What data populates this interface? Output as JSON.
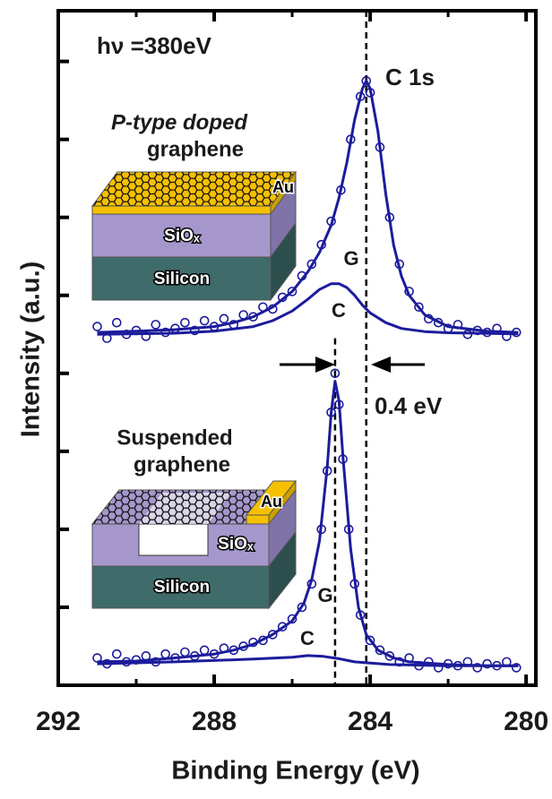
{
  "chart_data": {
    "type": "line",
    "x_label": "Binding Energy (eV)",
    "y_label": "Intensity (a.u.)",
    "xlim": [
      292,
      279.75
    ],
    "xticks": [
      292,
      288,
      284,
      280
    ],
    "xticks_minor": [
      290,
      286,
      282
    ],
    "ylim": [
      0,
      17.3
    ],
    "yticks": [
      2,
      4,
      6,
      8,
      10,
      12,
      14,
      16
    ],
    "vlines": [
      284.1,
      284.9
    ],
    "annotations": [
      "hν =380eV",
      "C 1s",
      "0.4 eV"
    ],
    "insets": [
      {
        "heading": [
          "P-type doped",
          "graphene"
        ],
        "layers": [
          "Au",
          "SiOₓ",
          "Silicon"
        ]
      },
      {
        "heading": [
          "Suspended",
          "graphene"
        ],
        "layers": [
          "Au",
          "SiOₓ",
          "Silicon"
        ]
      }
    ],
    "series": [
      {
        "style": "markers",
        "color": "#1c1c9c",
        "x": [
          291.0,
          290.75,
          290.5,
          290.25,
          290.0,
          289.75,
          289.5,
          289.25,
          289.0,
          288.75,
          288.5,
          288.25,
          288.0,
          287.75,
          287.5,
          287.25,
          287.0,
          286.75,
          286.5,
          286.25,
          286.0,
          285.75,
          285.5,
          285.25,
          285.0,
          284.75,
          284.5,
          284.25,
          284.1,
          284.0,
          283.75,
          283.5,
          283.25,
          283.0,
          282.75,
          282.5,
          282.25,
          282.0,
          281.75,
          281.5,
          281.25,
          281.0,
          280.75,
          280.5,
          280.25
        ],
        "values": [
          9.2,
          8.9,
          9.3,
          9.0,
          9.1,
          8.95,
          9.25,
          9.05,
          9.15,
          9.3,
          9.1,
          9.35,
          9.2,
          9.4,
          9.25,
          9.5,
          9.45,
          9.7,
          9.65,
          9.95,
          10.1,
          10.5,
          10.8,
          11.3,
          11.9,
          12.7,
          14.0,
          15.1,
          15.5,
          15.2,
          13.8,
          12.0,
          10.8,
          10.1,
          9.7,
          9.4,
          9.3,
          9.15,
          9.25,
          9.0,
          9.1,
          9.05,
          9.15,
          8.95,
          9.05
        ]
      },
      {
        "style": "line",
        "color": "#1c1c9c",
        "label": "G",
        "x": [
          291,
          290,
          289,
          288,
          287.5,
          287,
          286.5,
          286,
          285.6,
          285.3,
          285,
          284.8,
          284.6,
          284.4,
          284.2,
          284.1,
          284.0,
          283.8,
          283.6,
          283.4,
          283.2,
          283,
          282.6,
          282,
          281,
          280.2
        ],
        "values": [
          9.05,
          9.08,
          9.12,
          9.2,
          9.3,
          9.45,
          9.7,
          10.1,
          10.6,
          11.1,
          11.8,
          12.5,
          13.4,
          14.5,
          15.3,
          15.5,
          15.3,
          14.2,
          12.6,
          11.3,
          10.5,
          10.0,
          9.5,
          9.2,
          9.08,
          9.05
        ]
      },
      {
        "style": "line",
        "color": "#1c1c9c",
        "label": "C",
        "x": [
          291,
          289,
          288,
          287,
          286.5,
          286,
          285.6,
          285.3,
          285,
          284.8,
          284.6,
          284.4,
          284.2,
          284,
          283.6,
          283.2,
          282.6,
          282,
          280.2
        ],
        "values": [
          9.0,
          9.03,
          9.08,
          9.2,
          9.35,
          9.6,
          9.9,
          10.15,
          10.3,
          10.3,
          10.2,
          10.0,
          9.75,
          9.55,
          9.3,
          9.15,
          9.07,
          9.04,
          9.01
        ]
      },
      {
        "style": "markers",
        "color": "#1c1c9c",
        "x": [
          291.0,
          290.75,
          290.5,
          290.25,
          290.0,
          289.75,
          289.5,
          289.25,
          289.0,
          288.75,
          288.5,
          288.25,
          288.0,
          287.75,
          287.5,
          287.25,
          287.0,
          286.75,
          286.5,
          286.25,
          286.0,
          285.75,
          285.5,
          285.25,
          285.1,
          285.0,
          284.9,
          284.8,
          284.7,
          284.55,
          284.4,
          284.25,
          284.0,
          283.75,
          283.5,
          283.25,
          283.0,
          282.75,
          282.5,
          282.25,
          282.0,
          281.75,
          281.5,
          281.25,
          281.0,
          280.75,
          280.5,
          280.25
        ],
        "values": [
          0.7,
          0.55,
          0.8,
          0.6,
          0.65,
          0.75,
          0.6,
          0.8,
          0.7,
          0.85,
          0.75,
          0.9,
          0.8,
          0.95,
          0.9,
          1.0,
          1.1,
          1.15,
          1.3,
          1.5,
          1.7,
          2.0,
          2.6,
          4.0,
          5.5,
          7.0,
          8.0,
          7.2,
          5.8,
          4.0,
          2.6,
          1.8,
          1.15,
          0.9,
          0.75,
          0.6,
          0.7,
          0.5,
          0.6,
          0.45,
          0.55,
          0.5,
          0.6,
          0.45,
          0.55,
          0.5,
          0.6,
          0.45
        ]
      },
      {
        "style": "line",
        "color": "#1c1c9c",
        "label": "G",
        "x": [
          291,
          290,
          289,
          288,
          287.5,
          287,
          286.5,
          286,
          285.7,
          285.5,
          285.3,
          285.1,
          285.0,
          284.9,
          284.8,
          284.7,
          284.5,
          284.3,
          284.1,
          283.8,
          283.4,
          283,
          282,
          281,
          280.2
        ],
        "values": [
          0.6,
          0.62,
          0.7,
          0.8,
          0.9,
          1.05,
          1.3,
          1.65,
          2.1,
          2.7,
          3.7,
          5.6,
          7.0,
          7.8,
          7.3,
          5.9,
          3.5,
          2.0,
          1.3,
          0.9,
          0.7,
          0.6,
          0.53,
          0.5,
          0.5
        ]
      },
      {
        "style": "line",
        "color": "#1c1c9c",
        "label": "C",
        "x": [
          291,
          289,
          287,
          286,
          285.6,
          285.2,
          284.8,
          284.4,
          283.5,
          282,
          280.2
        ],
        "values": [
          0.55,
          0.6,
          0.67,
          0.72,
          0.76,
          0.74,
          0.68,
          0.6,
          0.53,
          0.5,
          0.5
        ]
      }
    ]
  }
}
